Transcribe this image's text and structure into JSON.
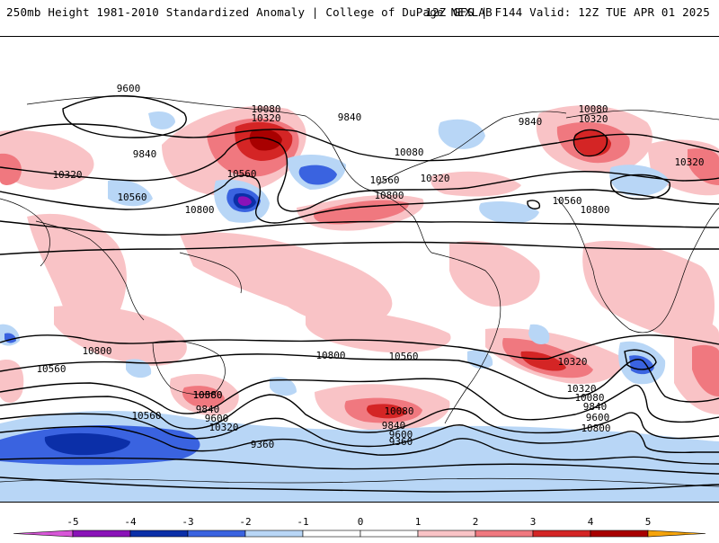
{
  "header": {
    "left_title": "250mb Height 1981-2010 Standardized Anomaly | College of DuPage NEXLAB",
    "right_title": "12Z GFS | F144 Valid: 12Z TUE APR 01 2025"
  },
  "colors": {
    "neg5": "#d856d8",
    "neg4": "#8a12b8",
    "neg3": "#0b2fa8",
    "neg2": "#3a63e0",
    "neg1": "#b8d6f6",
    "zero": "#ffffff",
    "pos1": "#f9c3c6",
    "pos2": "#f0787f",
    "pos3": "#d42525",
    "pos4": "#a80000",
    "pos5": "#f5a30a",
    "contour": "#000000",
    "coastline": "#000000"
  },
  "colorbar": {
    "ticks": [
      "-5",
      "-4",
      "-3",
      "-2",
      "-1",
      "0",
      "1",
      "2",
      "3",
      "4",
      "5"
    ]
  },
  "contour_labels": [
    {
      "text": "9600"
    },
    {
      "text": "9840"
    },
    {
      "text": "10320"
    },
    {
      "text": "10560"
    },
    {
      "text": "10080"
    },
    {
      "text": "10320"
    },
    {
      "text": "10560"
    },
    {
      "text": "10800"
    },
    {
      "text": "9840"
    },
    {
      "text": "10080"
    },
    {
      "text": "10560"
    },
    {
      "text": "10320"
    },
    {
      "text": "10800"
    },
    {
      "text": "10080"
    },
    {
      "text": "10320"
    },
    {
      "text": "9840"
    },
    {
      "text": "10560"
    },
    {
      "text": "10800"
    },
    {
      "text": "10320"
    },
    {
      "text": "10800"
    },
    {
      "text": "10560"
    },
    {
      "text": "10800"
    },
    {
      "text": "10560"
    },
    {
      "text": "10560"
    },
    {
      "text": "10320"
    },
    {
      "text": "10080"
    },
    {
      "text": "9840"
    },
    {
      "text": "9600"
    },
    {
      "text": "10800"
    },
    {
      "text": "10560"
    },
    {
      "text": "10320"
    },
    {
      "text": "10080"
    },
    {
      "text": "9840"
    },
    {
      "text": "9600"
    },
    {
      "text": "10320"
    },
    {
      "text": "10080"
    },
    {
      "text": "9840"
    },
    {
      "text": "9600"
    },
    {
      "text": "9360"
    },
    {
      "text": "9360"
    }
  ]
}
